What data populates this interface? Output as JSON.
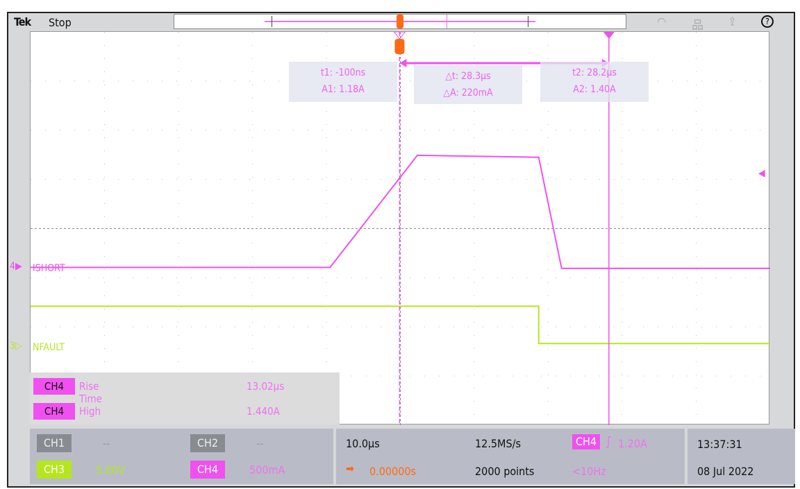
{
  "header": {
    "logo": "Tek",
    "state": "Stop",
    "icons": [
      "wifi-icon",
      "network-icon",
      "export-icon",
      "help-icon"
    ],
    "help_glyph": "?"
  },
  "cursors": {
    "t1": {
      "time": "t1: -100ns",
      "amp": "A1: 1.18A"
    },
    "delta": {
      "time": "△t: 28.3µs",
      "amp": "△A: 220mA"
    },
    "t2": {
      "time": "t2: 28.2µs",
      "amp": "A2: 1.40A"
    }
  },
  "channels": {
    "ch4_label": "ISHORT",
    "ch4_num": "4",
    "ch3_label": "NFAULT",
    "ch3_num": "3"
  },
  "measurements": [
    {
      "channel": "CH4",
      "name": "Rise Time",
      "value": "13.02µs"
    },
    {
      "channel": "CH4",
      "name": "High",
      "value": "1.440A"
    }
  ],
  "status": {
    "ch1": {
      "label": "CH1",
      "value": "--"
    },
    "ch2": {
      "label": "CH2",
      "value": "--"
    },
    "ch3": {
      "label": "CH3",
      "value": "5.00V"
    },
    "ch4": {
      "label": "CH4",
      "value": "500mA"
    },
    "horizontal_scale": "10.0µs",
    "sample_rate": "12.5MS/s",
    "trigger_position": "0.00000s",
    "record_length": "2000 points",
    "trigger_source": "CH4",
    "trigger_level": "1.20A",
    "trigger_freq": "<10Hz",
    "time": "13:37:31",
    "date": "08 Jul 2022"
  },
  "colors": {
    "ch4": "#f050f0",
    "ch3": "#b5e61d",
    "trigger": "#ff6a13",
    "panel": "#b9bcc6"
  },
  "chart_data": {
    "type": "line",
    "xlabel": "",
    "ylabel": "",
    "x_unit": "µs",
    "xlim": [
      -50,
      50
    ],
    "x_div": 10,
    "divisions_x": 10,
    "divisions_y": 8,
    "grid": true,
    "series": [
      {
        "name": "ISHORT",
        "channel": "CH4",
        "unit": "A",
        "scale_per_div": 0.5,
        "x": [
          -50,
          -9.5,
          2.3,
          18.7,
          21.8,
          50
        ],
        "y": [
          0.3,
          0.3,
          1.44,
          1.42,
          0.29,
          0.29
        ]
      },
      {
        "name": "NFAULT",
        "channel": "CH3",
        "unit": "V",
        "scale_per_div": 5,
        "x": [
          -50,
          18.7,
          18.7,
          50
        ],
        "y": [
          4.2,
          4.2,
          0.4,
          0.4
        ]
      }
    ],
    "cursors_us": [
      -0.1,
      28.2
    ]
  }
}
